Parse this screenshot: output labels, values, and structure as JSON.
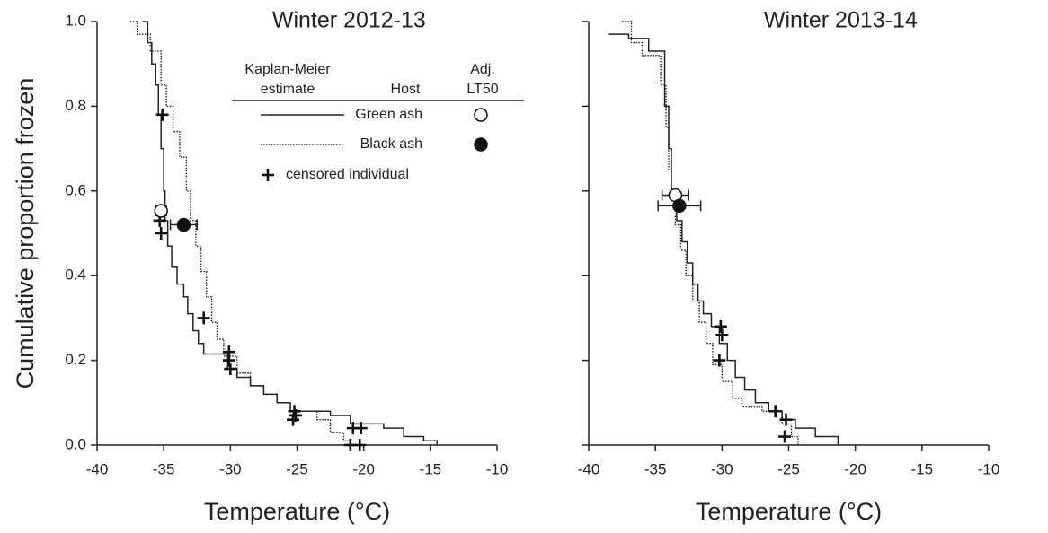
{
  "chart_data": [
    {
      "type": "step",
      "title": "Winter 2012-13",
      "xlabel": "Temperature (°C)",
      "ylabel": "Cumulative proportion frozen",
      "xlim": [
        -40,
        -10
      ],
      "ylim": [
        0,
        1
      ],
      "xticks": [
        -40,
        -35,
        -30,
        -25,
        -20,
        -15,
        -10
      ],
      "yticks": [
        {
          "value": 0,
          "label": "0.0"
        },
        0.2,
        0.4,
        0.6,
        0.8,
        {
          "value": 1,
          "label": "1.0"
        }
      ],
      "show_ytick_labels": true,
      "legend_headers": [
        [
          "Kaplan-Meier",
          "estimate"
        ],
        [
          "Host"
        ],
        [
          "Adj.",
          "LT50"
        ]
      ],
      "censored_label": "censored individual",
      "series": [
        {
          "name": "Green ash",
          "color": "#222222",
          "dash": "solid",
          "marker_fill": "#ffffff",
          "x": [
            -36.6,
            -36.2,
            -35.9,
            -35.6,
            -35.4,
            -35.2,
            -35.0,
            -34.9,
            -34.7,
            -34.4,
            -34.0,
            -33.5,
            -33.2,
            -32.8,
            -32.4,
            -32.0,
            -30.2,
            -29.5,
            -28.5,
            -27.5,
            -26.5,
            -25.5,
            -22.5,
            -21.0,
            -18.5,
            -17.0,
            -15.5,
            -14.5
          ],
          "values": [
            1.0,
            0.95,
            0.9,
            0.85,
            0.78,
            0.7,
            0.6,
            0.53,
            0.47,
            0.42,
            0.38,
            0.35,
            0.31,
            0.27,
            0.24,
            0.215,
            0.18,
            0.16,
            0.14,
            0.12,
            0.1,
            0.08,
            0.07,
            0.05,
            0.04,
            0.02,
            0.01,
            0.0
          ],
          "lt50": {
            "x": -35.2,
            "y": 0.553,
            "xerr": 0.4
          }
        },
        {
          "name": "Black ash",
          "color": "#222222",
          "dash": "dotted",
          "marker_fill": "#111111",
          "x": [
            -37.5,
            -37.0,
            -36.0,
            -35.2,
            -34.8,
            -34.3,
            -33.8,
            -33.3,
            -33.0,
            -32.6,
            -32.2,
            -31.8,
            -31.4,
            -31.0,
            -30.5,
            -29.5,
            -28.5,
            -27.5,
            -26.5,
            -25.5,
            -23.5,
            -22.5,
            -21.5,
            -21.0
          ],
          "values": [
            1.0,
            0.97,
            0.93,
            0.85,
            0.8,
            0.74,
            0.68,
            0.6,
            0.53,
            0.47,
            0.41,
            0.35,
            0.29,
            0.25,
            0.21,
            0.17,
            0.14,
            0.12,
            0.1,
            0.08,
            0.06,
            0.03,
            0.01,
            0.0
          ],
          "lt50": {
            "x": -33.5,
            "y": 0.52,
            "xerr": 1.0
          }
        }
      ],
      "censored": {
        "x": [
          -35.1,
          -35.3,
          -35.2,
          -32.0,
          -30.1,
          -30.1,
          -30.0,
          -25.2,
          -25.3,
          -25.1,
          -20.8,
          -20.2,
          -21.0,
          -20.3
        ],
        "y": [
          0.78,
          0.53,
          0.5,
          0.3,
          0.22,
          0.2,
          0.18,
          0.08,
          0.06,
          0.07,
          0.04,
          0.04,
          0.0,
          0.0
        ]
      }
    },
    {
      "type": "step",
      "title": "Winter 2013-14",
      "xlabel": "Temperature (°C)",
      "xlim": [
        -40,
        -10
      ],
      "ylim": [
        0,
        1
      ],
      "xticks": [
        -40,
        -35,
        -30,
        -25,
        -20,
        -15,
        -10
      ],
      "yticks": [
        0,
        0.2,
        0.4,
        0.6,
        0.8,
        1
      ],
      "show_ytick_labels": false,
      "series": [
        {
          "name": "Green ash",
          "color": "#222222",
          "dash": "solid",
          "marker_fill": "#ffffff",
          "x": [
            -38.5,
            -37.0,
            -35.5,
            -34.3,
            -34.0,
            -33.8,
            -33.4,
            -33.0,
            -32.6,
            -32.2,
            -31.8,
            -31.4,
            -30.8,
            -30.2,
            -29.6,
            -29.0,
            -28.3,
            -27.5,
            -26.5,
            -25.5,
            -24.5,
            -23.0,
            -21.3
          ],
          "values": [
            0.97,
            0.96,
            0.93,
            0.8,
            0.7,
            0.6,
            0.53,
            0.48,
            0.43,
            0.38,
            0.34,
            0.31,
            0.28,
            0.24,
            0.2,
            0.16,
            0.13,
            0.1,
            0.08,
            0.06,
            0.04,
            0.02,
            0.0
          ],
          "lt50": {
            "x": -33.5,
            "y": 0.59,
            "xerr": 1.0
          }
        },
        {
          "name": "Black ash",
          "color": "#222222",
          "dash": "dotted",
          "marker_fill": "#111111",
          "x": [
            -37.5,
            -36.8,
            -36.0,
            -34.6,
            -34.2,
            -34.0,
            -33.8,
            -33.5,
            -33.1,
            -32.7,
            -32.2,
            -31.7,
            -31.2,
            -30.7,
            -30.0,
            -29.2,
            -28.5,
            -27.0,
            -25.5,
            -24.8,
            -24.3
          ],
          "values": [
            1.0,
            0.95,
            0.92,
            0.85,
            0.75,
            0.65,
            0.58,
            0.52,
            0.46,
            0.4,
            0.34,
            0.29,
            0.24,
            0.19,
            0.15,
            0.11,
            0.09,
            0.08,
            0.05,
            0.02,
            0.0
          ],
          "lt50": {
            "x": -33.2,
            "y": 0.565,
            "xerr": 1.6
          }
        }
      ],
      "censored": {
        "x": [
          -30.1,
          -30.0,
          -30.2,
          -26.0,
          -25.2,
          -25.3
        ],
        "y": [
          0.28,
          0.26,
          0.2,
          0.08,
          0.06,
          0.02
        ]
      }
    }
  ]
}
